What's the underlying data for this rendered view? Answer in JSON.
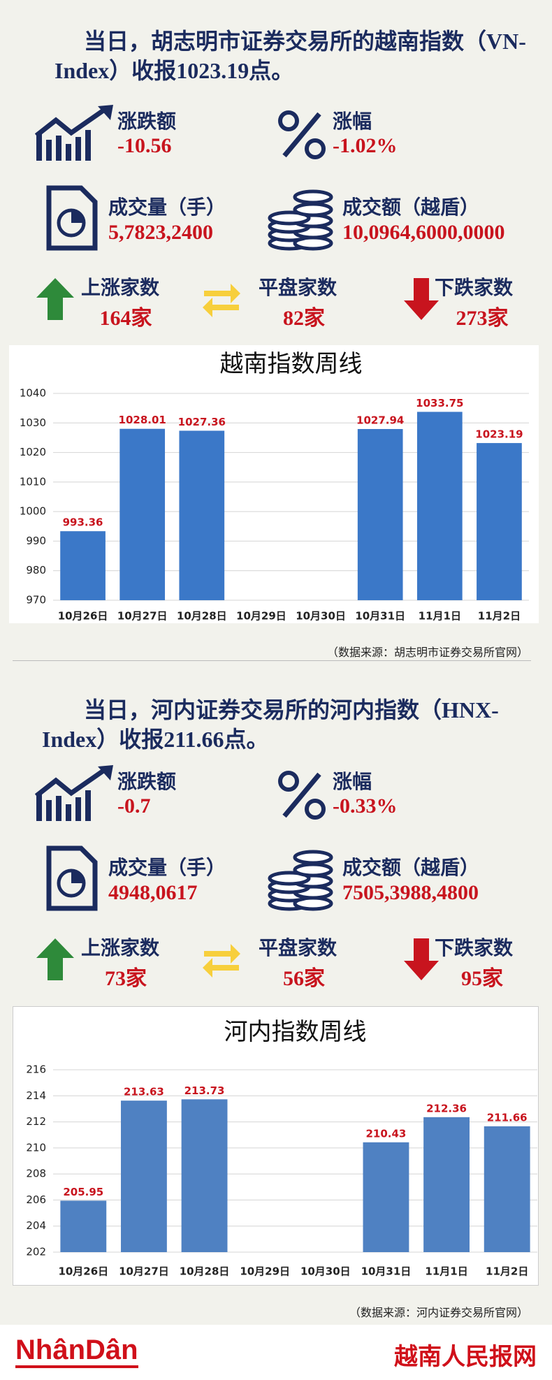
{
  "sections": [
    {
      "headline": "当日，胡志明市证券交易所的越南指数（VN-Index）收报1023.19点。",
      "stats": [
        {
          "label": "涨跌额",
          "value": "-10.56"
        },
        {
          "label": "涨幅",
          "value": "-1.02%"
        },
        {
          "label": "成交量（手）",
          "value": "5,7823,2400"
        },
        {
          "label": "成交额（越盾）",
          "value": "10,0964,6000,0000"
        },
        {
          "label": "上涨家数",
          "value": "164家"
        },
        {
          "label": "平盘家数",
          "value": "82家"
        },
        {
          "label": "下跌家数",
          "value": "273家"
        }
      ],
      "source": "（数据来源：胡志明市证券交易所官网）"
    },
    {
      "headline": "当日，河内证券交易所的河内指数（HNX-Index）收报211.66点。",
      "stats": [
        {
          "label": "涨跌额",
          "value": "-0.7"
        },
        {
          "label": "涨幅",
          "value": "-0.33%"
        },
        {
          "label": "成交量（手）",
          "value": "4948,0617"
        },
        {
          "label": "成交额（越盾）",
          "value": "7505,3988,4800"
        },
        {
          "label": "上涨家数",
          "value": "73家"
        },
        {
          "label": "平盘家数",
          "value": "56家"
        },
        {
          "label": "下跌家数",
          "value": "95家"
        }
      ],
      "source": "（数据来源：河内证券交易所官网）"
    }
  ],
  "chart_data": [
    {
      "type": "bar",
      "title": "越南指数周线",
      "categories": [
        "10月26日",
        "10月27日",
        "10月28日",
        "10月29日",
        "10月30日",
        "10月31日",
        "11月1日",
        "11月2日"
      ],
      "values": [
        993.36,
        1028.01,
        1027.36,
        null,
        null,
        1027.94,
        1033.75,
        1023.19
      ],
      "color": "#3b78c8",
      "ylim": [
        970,
        1040
      ],
      "yticks": [
        970,
        980,
        990,
        1000,
        1010,
        1020,
        1030,
        1040
      ],
      "grid": true
    },
    {
      "type": "bar",
      "title": "河内指数周线",
      "categories": [
        "10月26日",
        "10月27日",
        "10月28日",
        "10月29日",
        "10月30日",
        "10月31日",
        "11月1日",
        "11月2日"
      ],
      "values": [
        205.95,
        213.63,
        213.73,
        null,
        null,
        210.43,
        212.36,
        211.66
      ],
      "color": "#4f81c2",
      "ylim": [
        202,
        216
      ],
      "yticks": [
        202,
        204,
        206,
        208,
        210,
        212,
        214,
        216
      ],
      "grid": true
    }
  ],
  "footer": {
    "logo": "NhânDân",
    "site": "越南人民报网"
  }
}
